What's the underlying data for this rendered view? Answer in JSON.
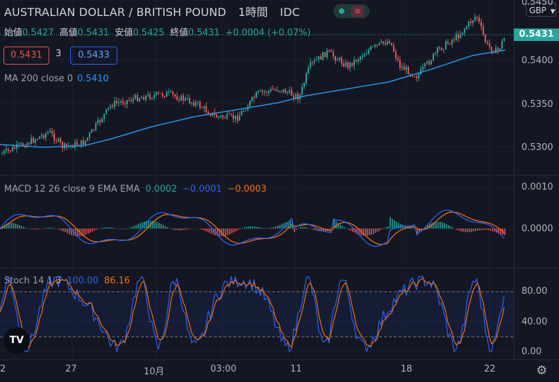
{
  "symbol_title": "AUSTRALIAN DOLLAR / BRITISH POUND",
  "timeframe": "1時間",
  "source": "IDC",
  "currency_button": "GBP",
  "ohlc": {
    "open_label": "始値",
    "open": "0.5427",
    "high_label": "高値",
    "high": "0.5431",
    "low_label": "安値",
    "low": "0.5425",
    "close_label": "終値",
    "close": "0.5431",
    "change": "+0.0004 (+0.07%)"
  },
  "bid": "0.5431",
  "spread": "3",
  "ask": "0.5433",
  "ma_label": "MA 200 close 0",
  "ma_value": "0.5410",
  "macd_label": "MACD 12 26 close 9 EMA EMA",
  "macd_hist": "0.0002",
  "macd_macd": "−0.0001",
  "macd_signal": "−0.0003",
  "stoch_label": "Stoch 14 1 3",
  "stoch_k": "100.00",
  "stoch_d": "86.16",
  "current_price_tag": "0.5431",
  "price_axis_labels": [
    "0.5450",
    "0.5400",
    "0.5350",
    "0.5300"
  ],
  "macd_axis_labels": [
    "0.0010",
    "0.0000"
  ],
  "stoch_axis_labels": [
    "80.00",
    "40.00",
    "0.00"
  ],
  "x_axis_labels": [
    "2",
    "27",
    "10月",
    "03:00",
    "11",
    "18",
    "22"
  ],
  "logo_text": "TV",
  "colors": {
    "background": "#131722",
    "up": "#26a69a",
    "down": "#ef5350",
    "ma": "#2196f3",
    "macd_line": "#2962ff",
    "signal_line": "#ff6d00"
  }
}
